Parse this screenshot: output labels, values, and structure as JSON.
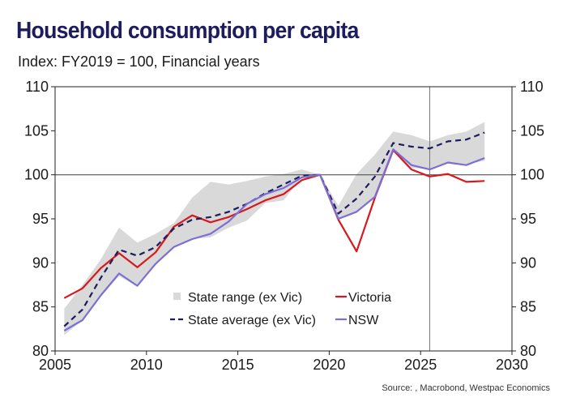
{
  "title": "Household consumption per capita",
  "subtitle": "Index: FY2019 = 100, Financial years",
  "source": "Source: , Macrobond, Westpac Economics",
  "chart_data": {
    "type": "line",
    "xlim": [
      2005,
      2030
    ],
    "ylim": [
      80,
      110
    ],
    "x_ticks": [
      2005,
      2010,
      2015,
      2020,
      2025,
      2030
    ],
    "y_ticks": [
      80,
      85,
      90,
      95,
      100,
      105,
      110
    ],
    "x_tick_labels": [
      "2005",
      "2010",
      "2015",
      "2020",
      "2025",
      "2030"
    ],
    "y_tick_labels": [
      "80",
      "85",
      "90",
      "95",
      "100",
      "105",
      "110"
    ],
    "reference_line_y": 100,
    "vertical_line_x": 2025.5,
    "legend_position": "lower-right",
    "x": [
      2005.5,
      2006.5,
      2007.5,
      2008.5,
      2009.5,
      2010.5,
      2011.5,
      2012.5,
      2013.5,
      2014.5,
      2015.5,
      2016.5,
      2017.5,
      2018.5,
      2019.5,
      2020.5,
      2021.5,
      2022.5,
      2023.5,
      2024.5,
      2025.5,
      2026.5,
      2027.5,
      2028.5
    ],
    "band": {
      "name": "State range (ex Vic)",
      "color": "#d9d9d9",
      "low": [
        81.8,
        83.5,
        86.2,
        88.5,
        87.3,
        89.9,
        91.8,
        92.7,
        92.9,
        94.0,
        94.8,
        96.8,
        97.1,
        99.7,
        100.0,
        95.0,
        95.8,
        97.5,
        102.7,
        100.8,
        100.6,
        101.3,
        101.2,
        101.6
      ],
      "high": [
        84.8,
        87.5,
        90.4,
        94.0,
        92.3,
        93.3,
        94.5,
        97.4,
        99.2,
        98.9,
        99.3,
        99.8,
        100.1,
        100.6,
        100.0,
        96.5,
        100.1,
        102.3,
        104.9,
        104.5,
        103.8,
        104.5,
        104.9,
        106.0
      ]
    },
    "series": [
      {
        "name": "Victoria",
        "color": "#d7191c",
        "dash": false,
        "values": [
          86.0,
          87.1,
          89.4,
          91.1,
          89.5,
          91.2,
          94.1,
          95.4,
          94.6,
          95.2,
          96.1,
          97.1,
          97.8,
          99.4,
          100.0,
          94.9,
          91.3,
          97.4,
          102.8,
          100.6,
          99.8,
          100.1,
          99.2,
          99.3
        ]
      },
      {
        "name": "State average (ex Vic)",
        "color": "#1c1c5e",
        "dash": true,
        "values": [
          82.8,
          84.7,
          88.3,
          91.5,
          90.8,
          91.8,
          93.9,
          94.9,
          95.2,
          95.8,
          96.7,
          97.9,
          98.9,
          99.9,
          100.0,
          95.6,
          97.3,
          99.8,
          103.6,
          103.2,
          103.0,
          103.8,
          104.0,
          104.8
        ]
      },
      {
        "name": "NSW",
        "color": "#7b6fd6",
        "dash": false,
        "values": [
          82.3,
          83.5,
          86.3,
          88.8,
          87.4,
          89.9,
          91.8,
          92.7,
          93.3,
          94.7,
          96.7,
          97.8,
          98.5,
          99.7,
          100.0,
          95.0,
          95.8,
          97.5,
          102.9,
          101.1,
          100.6,
          101.4,
          101.1,
          101.9
        ]
      }
    ]
  }
}
